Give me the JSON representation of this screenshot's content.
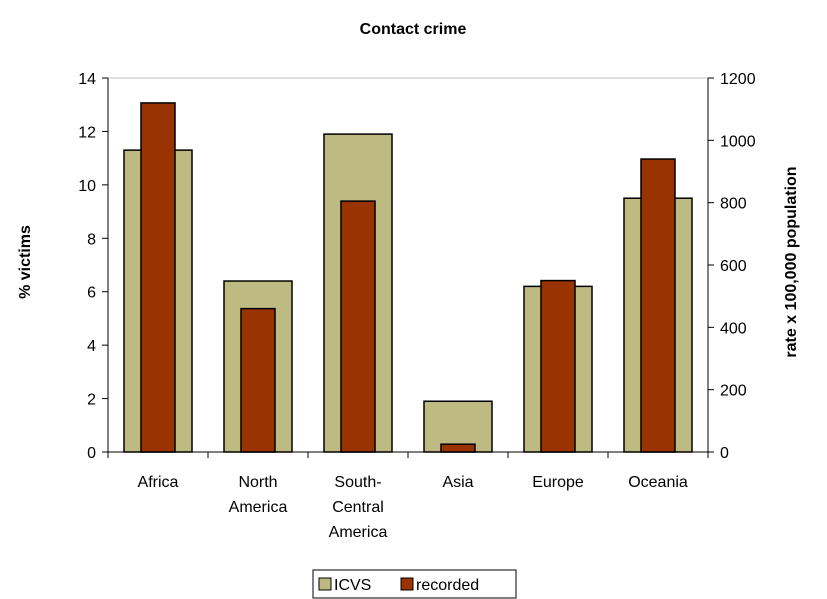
{
  "chart_data": {
    "type": "bar",
    "title": "Contact crime",
    "categories": [
      [
        "Africa"
      ],
      [
        "North",
        "America"
      ],
      [
        "South-",
        "Central",
        "America"
      ],
      [
        "Asia"
      ],
      [
        "Europe"
      ],
      [
        "Oceania"
      ]
    ],
    "series": [
      {
        "name": "ICVS",
        "axis": "left",
        "values": [
          11.3,
          6.4,
          11.9,
          1.9,
          6.2,
          9.5
        ],
        "color": "#BDBB82"
      },
      {
        "name": "recorded",
        "axis": "right",
        "values": [
          1120,
          460,
          805,
          25,
          550,
          940
        ],
        "color": "#993300"
      }
    ],
    "ylabel": "% victims",
    "ylabel_right": "rate x 100,000 population",
    "ylim": [
      0,
      14
    ],
    "ylim_right": [
      0,
      1200
    ],
    "yticks": [
      "0",
      "2",
      "4",
      "6",
      "8",
      "10",
      "12",
      "14"
    ],
    "yticks_right": [
      "0",
      "200",
      "400",
      "600",
      "800",
      "1000",
      "1200"
    ],
    "legend": {
      "placement": "bottom",
      "entries": [
        "ICVS",
        "recorded"
      ]
    },
    "grid": false
  }
}
